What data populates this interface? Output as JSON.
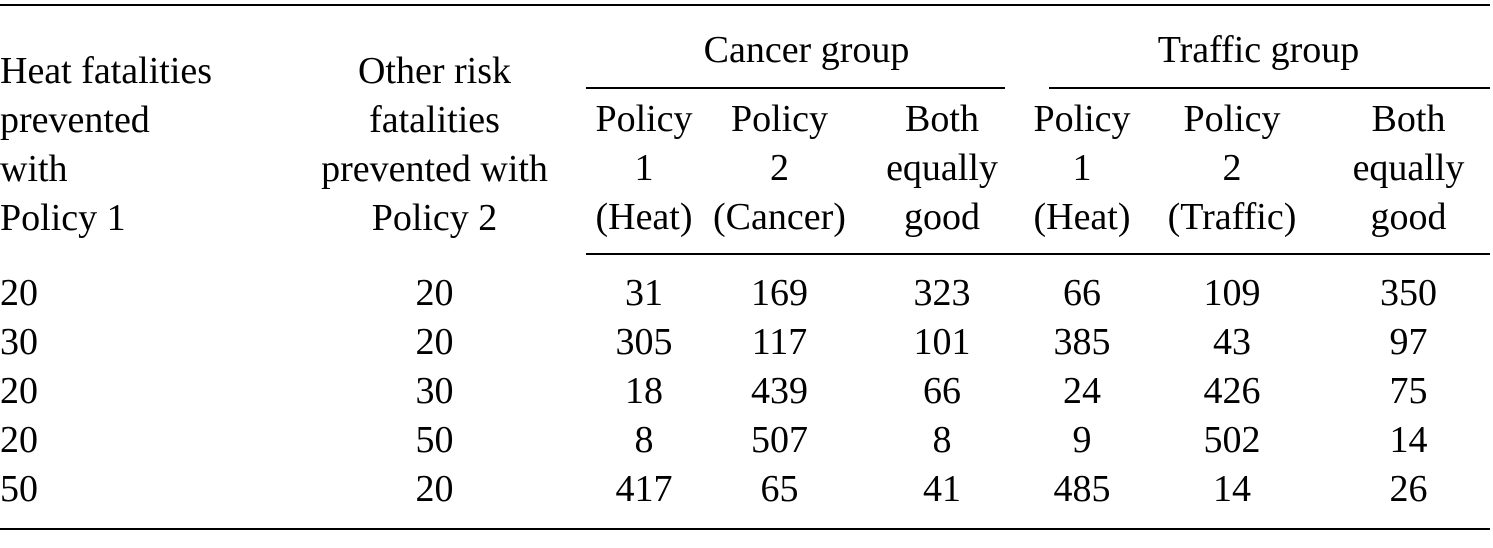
{
  "table": {
    "col1_header_lines": [
      "Heat fatalities",
      "prevented",
      "with",
      "Policy 1"
    ],
    "col2_header_lines": [
      "Other risk",
      "fatalities",
      "prevented with",
      "Policy 2"
    ],
    "groups": [
      {
        "label": "Cancer group",
        "columns": [
          {
            "lines": [
              "Policy",
              "1",
              "(Heat)"
            ]
          },
          {
            "lines": [
              "Policy",
              "2",
              "(Cancer)"
            ]
          },
          {
            "lines": [
              "Both",
              "equally",
              "good"
            ]
          }
        ]
      },
      {
        "label": "Traffic group",
        "columns": [
          {
            "lines": [
              "Policy",
              "1",
              "(Heat)"
            ]
          },
          {
            "lines": [
              "Policy",
              "2",
              "(Traffic)"
            ]
          },
          {
            "lines": [
              "Both",
              "equally",
              "good"
            ]
          }
        ]
      }
    ],
    "rows": [
      [
        "20",
        "20",
        "31",
        "169",
        "323",
        "66",
        "109",
        "350"
      ],
      [
        "30",
        "20",
        "305",
        "117",
        "101",
        "385",
        "43",
        "97"
      ],
      [
        "20",
        "30",
        "18",
        "439",
        "66",
        "24",
        "426",
        "75"
      ],
      [
        "20",
        "50",
        "8",
        "507",
        "8",
        "9",
        "502",
        "14"
      ],
      [
        "50",
        "20",
        "417",
        "65",
        "41",
        "485",
        "14",
        "26"
      ]
    ]
  }
}
